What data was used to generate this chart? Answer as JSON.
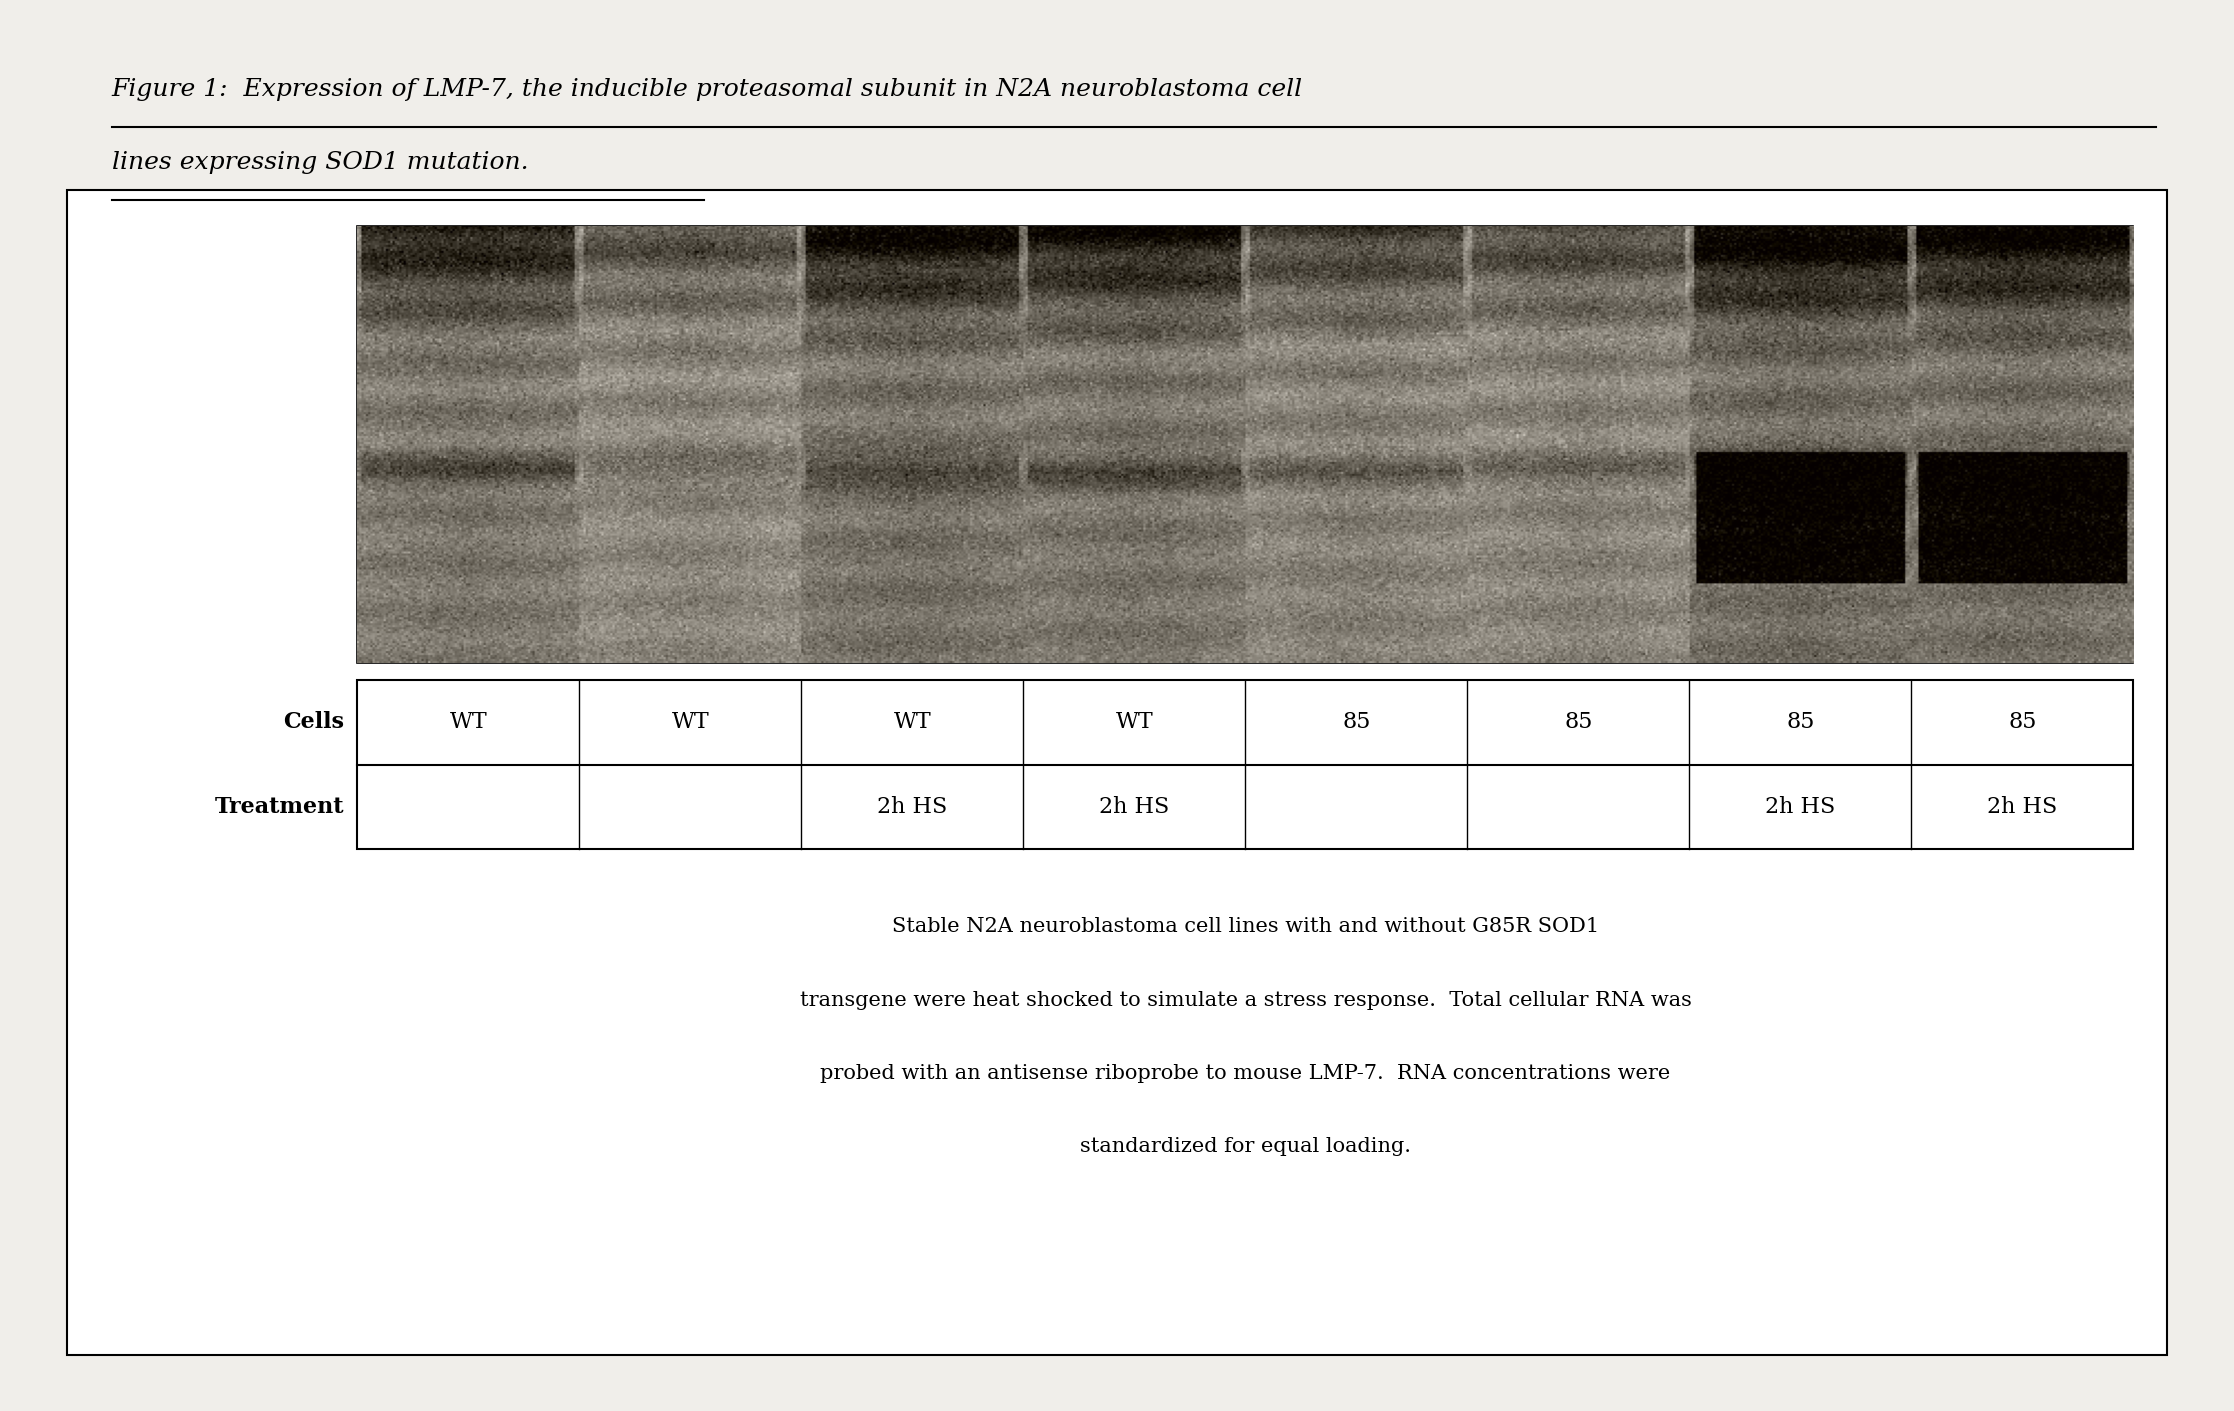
{
  "title_line1": "Figure 1:  Expression of LMP-7, the inducible proteasomal subunit in N2A neuroblastoma cell",
  "title_line2": "lines expressing SOD1 mutation.",
  "bg_color": "#f0eeea",
  "cells_row": [
    "WT",
    "WT",
    "WT",
    "WT",
    "85",
    "85",
    "85",
    "85"
  ],
  "treatment_row": [
    "",
    "",
    "2h HS",
    "2h HS",
    "",
    "",
    "2h HS",
    "2h HS"
  ],
  "caption_line1": "Stable N2A neuroblastoma cell lines with and without G85R SOD1",
  "caption_line2": "transgene were heat shocked to simulate a stress response.  Total cellular RNA was",
  "caption_line3": "probed with an antisense riboprobe to mouse LMP-7.  RNA concentrations were",
  "caption_line4": "standardized for equal loading.",
  "band_intensities": [
    0.75,
    0.45,
    0.85,
    0.8,
    0.55,
    0.5,
    0.95,
    0.9
  ],
  "title_fontsize": 18,
  "table_fontsize": 16,
  "caption_fontsize": 15
}
